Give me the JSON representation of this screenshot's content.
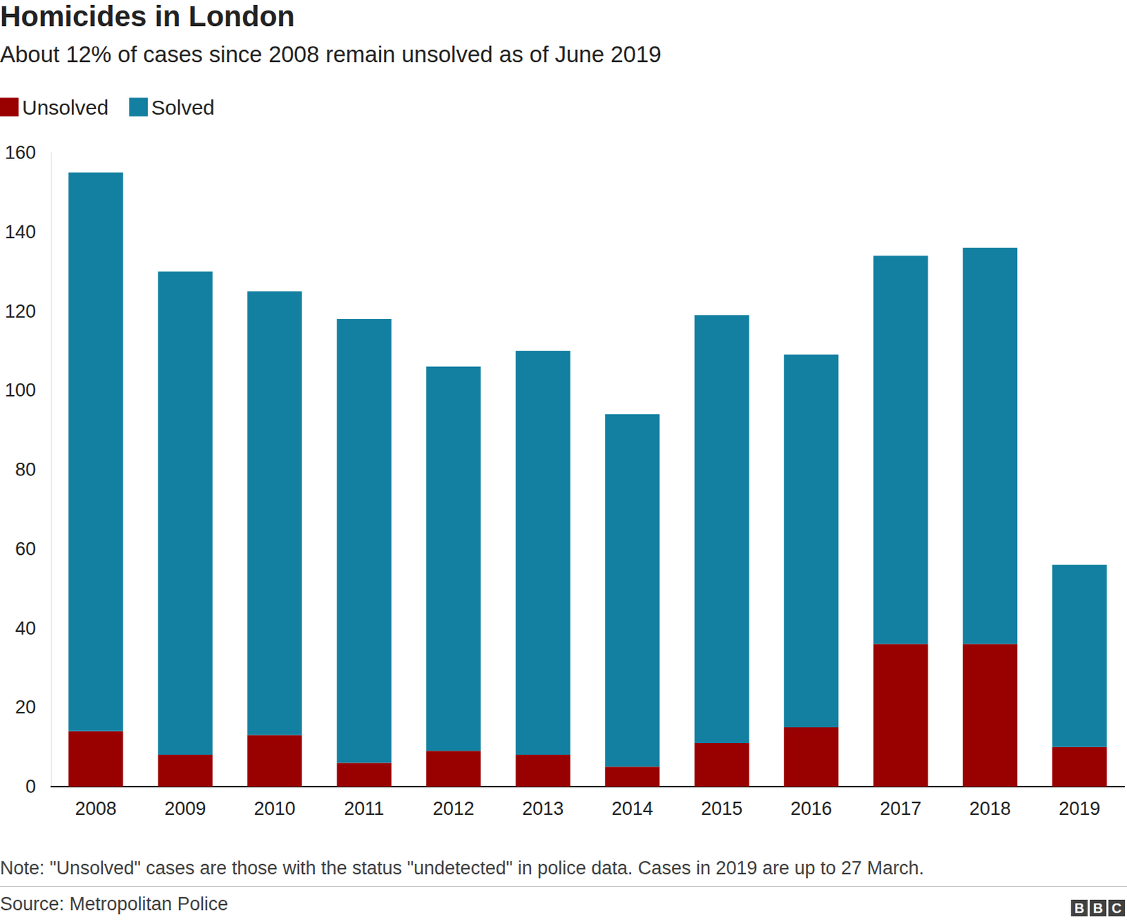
{
  "chart_data": {
    "type": "bar",
    "title": "Homicides in London",
    "subtitle": "About 12% of cases since 2008 remain unsolved as of June 2019",
    "note": "Note: \"Unsolved\" cases are those with the status \"undetected\" in police data. Cases in 2019 are up to 27 March.",
    "source": "Source: Metropolitan Police",
    "logo": "BBC",
    "categories": [
      "2008",
      "2009",
      "2010",
      "2011",
      "2012",
      "2013",
      "2014",
      "2015",
      "2016",
      "2017",
      "2018",
      "2019"
    ],
    "series": [
      {
        "name": "Unsolved",
        "color": "#990000",
        "values": [
          14,
          8,
          13,
          6,
          9,
          8,
          5,
          11,
          15,
          36,
          36,
          10
        ]
      },
      {
        "name": "Solved",
        "color": "#1380a1",
        "values": [
          141,
          122,
          112,
          112,
          97,
          102,
          89,
          108,
          94,
          98,
          100,
          46
        ]
      }
    ],
    "stacked": true,
    "ylim": [
      0,
      160
    ],
    "yticks": [
      0,
      20,
      40,
      60,
      80,
      100,
      120,
      140,
      160
    ],
    "grid": false,
    "legend": "top-left"
  }
}
